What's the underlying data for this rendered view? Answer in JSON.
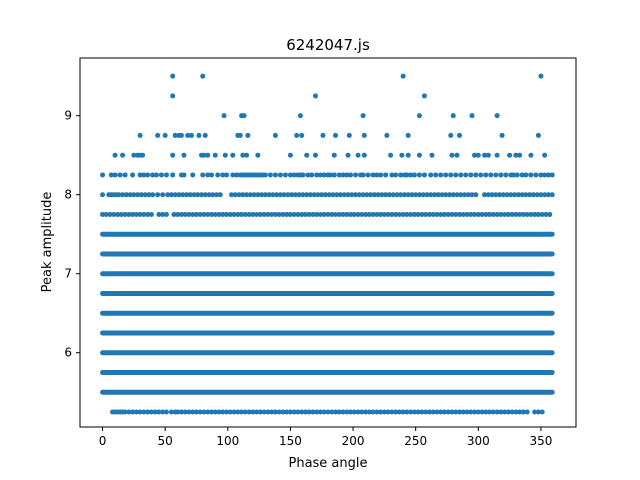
{
  "chart_data": {
    "type": "scatter",
    "title": "6242047.js",
    "xlabel": "Phase angle",
    "ylabel": "Peak amplitude",
    "xlim": [
      -18,
      378
    ],
    "ylim": [
      5.06,
      9.73
    ],
    "xticks": [
      0,
      50,
      100,
      150,
      200,
      250,
      300,
      350
    ],
    "yticks": [
      6,
      7,
      8,
      9
    ],
    "xtick_labels": [
      "0",
      "50",
      "100",
      "150",
      "200",
      "250",
      "300",
      "350"
    ],
    "ytick_labels": [
      "6",
      "7",
      "8",
      "9"
    ],
    "grid": false,
    "marker_color": "#1f77b4",
    "dense_bands": {
      "levels": [
        5.5,
        5.75,
        6.0,
        6.25,
        6.5,
        6.75,
        7.0,
        7.25,
        7.5
      ],
      "x_range": [
        0,
        359
      ]
    },
    "sparse_bands": [
      {
        "y": 5.25,
        "x": [
          8,
          10,
          12,
          14,
          16,
          18,
          21,
          24,
          27,
          30,
          33,
          36,
          39,
          42,
          45,
          48,
          51,
          55,
          58,
          60,
          63,
          66,
          69,
          72,
          75,
          78,
          81,
          84,
          87,
          90,
          93,
          96,
          99,
          102,
          105,
          108,
          111,
          114,
          117,
          120,
          123,
          126,
          129,
          132,
          135,
          138,
          141,
          144,
          147,
          150,
          153,
          156,
          159,
          162,
          165,
          168,
          171,
          174,
          177,
          180,
          183,
          186,
          189,
          192,
          195,
          198,
          201,
          204,
          207,
          210,
          213,
          216,
          219,
          222,
          225,
          228,
          231,
          234,
          237,
          240,
          243,
          246,
          249,
          252,
          255,
          258,
          261,
          264,
          267,
          270,
          273,
          276,
          279,
          282,
          285,
          288,
          291,
          294,
          297,
          300,
          303,
          306,
          309,
          312,
          315,
          318,
          321,
          324,
          327,
          330,
          333,
          336,
          339,
          345,
          348,
          351
        ]
      },
      {
        "y": 7.75,
        "x": [
          0,
          3,
          6,
          9,
          12,
          15,
          18,
          21,
          24,
          27,
          30,
          33,
          36,
          39,
          45,
          48,
          51,
          57,
          60,
          63,
          66,
          69,
          72,
          75,
          78,
          81,
          84,
          87,
          90,
          93,
          96,
          99,
          102,
          105,
          108,
          111,
          114,
          117,
          120,
          123,
          126,
          129,
          132,
          135,
          138,
          141,
          144,
          147,
          150,
          153,
          156,
          159,
          162,
          165,
          168,
          171,
          174,
          177,
          180,
          183,
          186,
          189,
          192,
          195,
          198,
          201,
          204,
          207,
          210,
          213,
          216,
          219,
          222,
          225,
          228,
          231,
          234,
          237,
          240,
          243,
          246,
          249,
          252,
          255,
          258,
          261,
          264,
          267,
          270,
          273,
          276,
          279,
          282,
          285,
          288,
          291,
          294,
          297,
          300,
          303,
          306,
          309,
          312,
          315,
          318,
          321,
          324,
          327,
          330,
          333,
          336,
          339,
          342,
          345,
          348,
          351,
          354,
          357
        ]
      },
      {
        "y": 8.0,
        "x": [
          0,
          5,
          7,
          9,
          11,
          13,
          16,
          19,
          22,
          25,
          28,
          31,
          34,
          37,
          40,
          44,
          48,
          52,
          55,
          58,
          61,
          64,
          67,
          70,
          73,
          76,
          79,
          82,
          85,
          88,
          91,
          94,
          103,
          106,
          109,
          112,
          115,
          118,
          121,
          124,
          127,
          130,
          133,
          136,
          139,
          142,
          145,
          148,
          151,
          154,
          157,
          160,
          163,
          166,
          169,
          172,
          175,
          178,
          181,
          184,
          187,
          190,
          193,
          196,
          199,
          202,
          205,
          208,
          211,
          214,
          217,
          220,
          223,
          226,
          229,
          232,
          235,
          238,
          241,
          244,
          247,
          250,
          253,
          256,
          259,
          262,
          265,
          268,
          271,
          274,
          277,
          280,
          283,
          286,
          289,
          292,
          295,
          298,
          305,
          308,
          311,
          314,
          317,
          320,
          323,
          326,
          329,
          332,
          335,
          338,
          341,
          344,
          347,
          350,
          353,
          356,
          359
        ]
      },
      {
        "y": 8.25,
        "x": [
          0,
          7,
          10,
          14,
          18,
          24,
          30,
          33,
          36,
          40,
          43,
          47,
          51,
          56,
          63,
          65,
          72,
          80,
          84,
          87,
          92,
          96,
          99,
          104,
          107,
          110,
          112,
          114,
          116,
          118,
          120,
          122,
          124,
          126,
          128,
          130,
          134,
          138,
          142,
          146,
          150,
          153,
          156,
          158,
          160,
          164,
          167,
          171,
          174,
          177,
          180,
          182,
          185,
          189,
          192,
          195,
          198,
          202,
          206,
          208,
          212,
          216,
          219,
          222,
          226,
          231,
          234,
          238,
          241,
          243,
          246,
          249,
          253,
          257,
          262,
          266,
          270,
          274,
          278,
          282,
          286,
          290,
          294,
          298,
          302,
          306,
          310,
          314,
          318,
          322,
          326,
          328,
          331,
          335,
          338,
          342,
          346,
          350,
          353,
          356,
          359
        ]
      },
      {
        "y": 8.5,
        "x": [
          10,
          16,
          25,
          28,
          30,
          32,
          56,
          65,
          79,
          81,
          84,
          90,
          98,
          104,
          112,
          115,
          124,
          150,
          163,
          170,
          185,
          196,
          204,
          209,
          230,
          239,
          244,
          253,
          263,
          279,
          283,
          297,
          300,
          305,
          308,
          315,
          325,
          330,
          333,
          342,
          353
        ]
      },
      {
        "y": 8.75,
        "x": [
          30,
          44,
          50,
          58,
          61,
          63,
          68,
          71,
          77,
          82,
          108,
          110,
          116,
          138,
          155,
          159,
          176,
          186,
          197,
          209,
          227,
          244,
          278,
          285,
          319,
          348
        ]
      },
      {
        "y": 9.0,
        "x": [
          97,
          111,
          113,
          158,
          208,
          253,
          280,
          295,
          315
        ]
      },
      {
        "y": 9.25,
        "x": [
          56,
          170,
          257
        ]
      },
      {
        "y": 9.5,
        "x": [
          56,
          80,
          240,
          350
        ]
      }
    ]
  }
}
